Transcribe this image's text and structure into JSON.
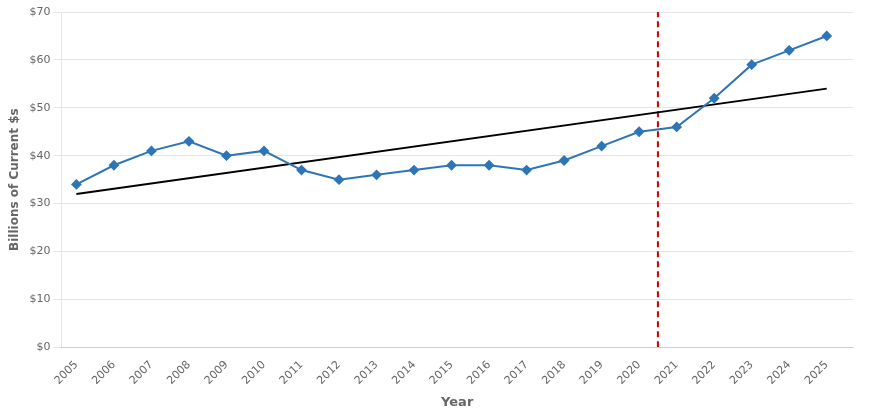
{
  "chart_data": {
    "type": "line",
    "xlabel": "Year",
    "ylabel": "Billions of Current $s",
    "series": [
      {
        "x": [
          2005,
          2006,
          2007,
          2008,
          2009,
          2010,
          2011,
          2012,
          2013,
          2014,
          2015,
          2016,
          2017,
          2018,
          2019,
          2020,
          2021,
          2022,
          2023,
          2024,
          2025
        ],
        "values": [
          34,
          38,
          41,
          43,
          40,
          41,
          37,
          35,
          36,
          37,
          38,
          38,
          37,
          39,
          42,
          45,
          46,
          52,
          59,
          62,
          65
        ],
        "color": "#2E75B6",
        "marker": "diamond",
        "line_style": "solid"
      },
      {
        "x": [
          2005,
          2025
        ],
        "values": [
          32,
          54
        ],
        "color": "#000000",
        "line_style": "solid"
      },
      {
        "x": [
          2020.5,
          2020.5
        ],
        "values": [
          0,
          70
        ],
        "color": "#CC0000",
        "line_style": "dashed"
      }
    ],
    "xlim": [
      2004.6,
      2025.7
    ],
    "xticks": [
      2005,
      2006,
      2007,
      2008,
      2009,
      2010,
      2011,
      2012,
      2013,
      2014,
      2015,
      2016,
      2017,
      2018,
      2019,
      2020,
      2021,
      2022,
      2023,
      2024,
      2025
    ],
    "ylim": [
      0,
      70
    ],
    "yticks": [
      {
        "value": 0,
        "label": "$0"
      },
      {
        "value": 10,
        "label": "$10"
      },
      {
        "value": 20,
        "label": "$20"
      },
      {
        "value": 30,
        "label": "$30"
      },
      {
        "value": 40,
        "label": "$40"
      },
      {
        "value": 50,
        "label": "$50"
      },
      {
        "value": 60,
        "label": "$60"
      },
      {
        "value": 70,
        "label": "$70"
      }
    ],
    "grid": "y"
  }
}
